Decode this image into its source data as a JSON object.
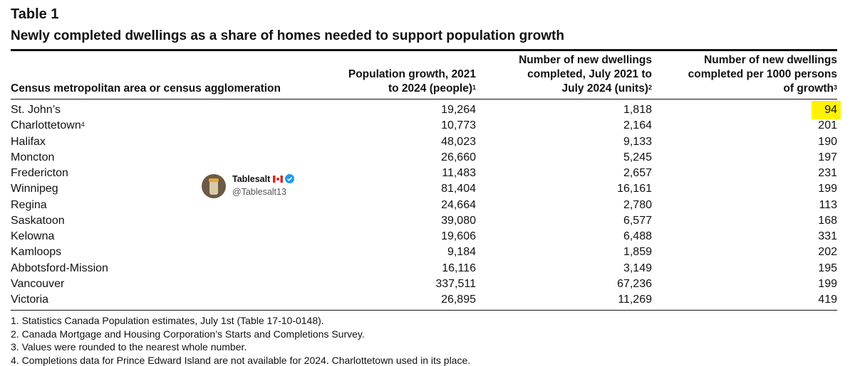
{
  "title": "Table 1",
  "subtitle": "Newly completed dwellings as a share of homes needed to support population growth",
  "table": {
    "headers": [
      {
        "text": "Census metropolitan area or census agglomeration"
      },
      {
        "text": "Population growth, 2021 to 2024 (people)",
        "note": "1"
      },
      {
        "text": "Number of new dwellings completed, July 2021 to July 2024 (units)",
        "note": "2"
      },
      {
        "text": "Number of new dwellings completed per 1000 persons of growth",
        "note": "3"
      }
    ],
    "rows": [
      [
        {
          "text": "St. John’s"
        },
        "19,264",
        "1,818",
        "94"
      ],
      [
        {
          "text": "Charlottetown",
          "note": "4"
        },
        "10,773",
        "2,164",
        "201"
      ],
      [
        {
          "text": "Halifax"
        },
        "48,023",
        "9,133",
        "190"
      ],
      [
        {
          "text": "Moncton"
        },
        "26,660",
        "5,245",
        "197"
      ],
      [
        {
          "text": "Fredericton"
        },
        "11,483",
        "2,657",
        "231"
      ],
      [
        {
          "text": "Winnipeg"
        },
        "81,404",
        "16,161",
        "199"
      ],
      [
        {
          "text": "Regina"
        },
        "24,664",
        "2,780",
        "113"
      ],
      [
        {
          "text": "Saskatoon"
        },
        "39,080",
        "6,577",
        "168"
      ],
      [
        {
          "text": "Kelowna"
        },
        "19,606",
        "6,488",
        "331"
      ],
      [
        {
          "text": "Kamloops"
        },
        "9,184",
        "1,859",
        "202"
      ],
      [
        {
          "text": "Abbotsford-Mission"
        },
        "16,116",
        "3,149",
        "195"
      ],
      [
        {
          "text": "Vancouver"
        },
        "337,511",
        "67,236",
        "199"
      ],
      [
        {
          "text": "Victoria"
        },
        "26,895",
        "11,269",
        "419"
      ]
    ]
  },
  "footnotes": [
    "1. Statistics Canada Population estimates, July 1st (Table 17-10-0148).",
    "2. Canada Mortgage and Housing Corporation’s Starts and Completions Survey.",
    "3. Values were rounded to the nearest whole number.",
    "4. Completions data for Prince Edward Island are not available for 2024. Charlottetown used in its place."
  ],
  "watermark": {
    "name": "Tablesalt",
    "handle": "@Tablesalt13"
  }
}
